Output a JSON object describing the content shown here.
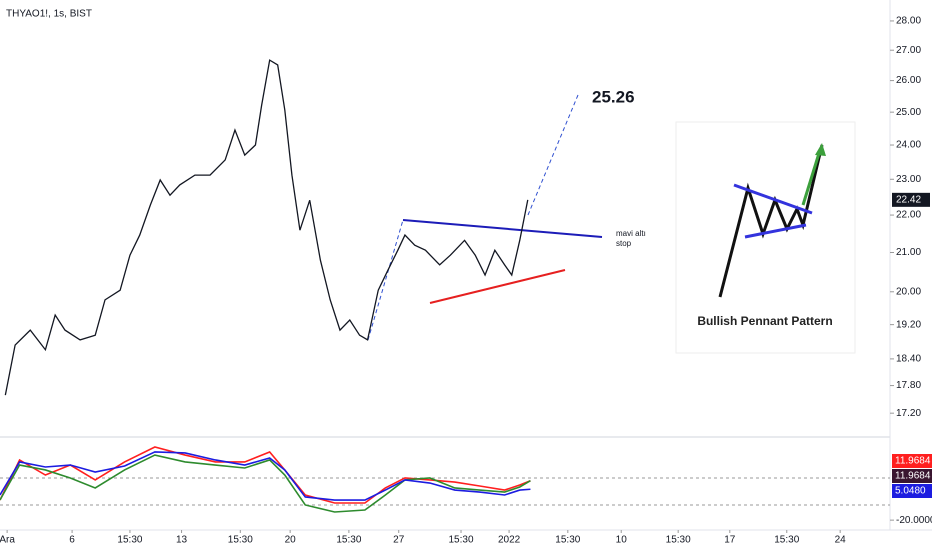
{
  "chart_data": [
    {
      "type": "line",
      "title": "THYAO1!, 1s, BIST",
      "log_scale": true,
      "color": "#131722",
      "x": [
        0.6,
        1.7,
        3.4,
        5.1,
        6.2,
        7.3,
        9.0,
        10.7,
        11.8,
        13.5,
        14.6,
        15.7,
        16.9,
        18.0,
        19.1,
        20.2,
        21.9,
        23.6,
        25.3,
        26.4,
        27.5,
        28.7,
        29.4,
        30.3,
        31.2,
        32.0,
        32.8,
        33.7,
        34.8,
        36.0,
        37.1,
        38.2,
        39.3,
        40.4,
        41.3,
        42.5,
        43.6,
        44.7,
        45.5,
        46.6,
        47.8,
        49.4,
        50.6,
        52.2,
        53.4,
        54.5,
        55.6,
        56.7,
        57.5,
        58.4,
        59.3
      ],
      "values": [
        17.59,
        18.72,
        19.07,
        18.61,
        19.43,
        19.07,
        18.84,
        18.95,
        19.8,
        20.04,
        20.93,
        21.46,
        22.28,
        22.98,
        22.55,
        22.84,
        23.12,
        23.12,
        23.56,
        24.45,
        23.7,
        24.0,
        25.22,
        26.67,
        26.51,
        25.07,
        23.12,
        21.59,
        22.41,
        20.8,
        19.8,
        19.07,
        19.31,
        18.95,
        18.84,
        20.04,
        20.55,
        21.06,
        21.46,
        21.19,
        21.06,
        20.68,
        20.93,
        21.32,
        20.93,
        20.42,
        21.06,
        20.68,
        20.42,
        21.32,
        22.42
      ],
      "xlim": [
        0,
        100
      ],
      "xticks": [
        {
          "value": 0.8,
          "label": "Ara"
        },
        {
          "value": 8.1,
          "label": "6"
        },
        {
          "value": 14.6,
          "label": "15:30"
        },
        {
          "value": 20.4,
          "label": "13"
        },
        {
          "value": 27,
          "label": "15:30"
        },
        {
          "value": 32.6,
          "label": "20"
        },
        {
          "value": 39.2,
          "label": "15:30"
        },
        {
          "value": 44.8,
          "label": "27"
        },
        {
          "value": 51.8,
          "label": "15:30"
        },
        {
          "value": 57.2,
          "label": "2022"
        },
        {
          "value": 63.8,
          "label": "15:30"
        },
        {
          "value": 69.8,
          "label": "10"
        },
        {
          "value": 76.2,
          "label": "15:30"
        },
        {
          "value": 82,
          "label": "17"
        },
        {
          "value": 88.4,
          "label": "15:30"
        },
        {
          "value": 94.4,
          "label": "24"
        }
      ],
      "ylim": [
        16.74,
        28.56
      ],
      "yticks": [
        {
          "value": 28,
          "label": "28.00"
        },
        {
          "value": 27,
          "label": "27.00"
        },
        {
          "value": 26,
          "label": "26.00"
        },
        {
          "value": 25,
          "label": "25.00"
        },
        {
          "value": 24,
          "label": "24.00"
        },
        {
          "value": 23,
          "label": "23.00"
        },
        {
          "value": 22,
          "label": "22.00"
        },
        {
          "value": 21,
          "label": "21.00"
        },
        {
          "value": 20,
          "label": "20.00"
        },
        {
          "value": 19.2,
          "label": "19.20"
        },
        {
          "value": 18.4,
          "label": "18.40"
        },
        {
          "value": 17.8,
          "label": "17.80"
        },
        {
          "value": 17.2,
          "label": "17.20"
        }
      ],
      "annotations": [
        "25.26",
        "mavi altı",
        "stop",
        "Bullish Pennant Pattern"
      ]
    },
    {
      "type": "multiline",
      "x": [
        0,
        2.2,
        5.1,
        7.9,
        10.7,
        14.0,
        17.4,
        20.8,
        24.2,
        27.5,
        30.3,
        32.0,
        34.3,
        37.6,
        41.0,
        43.3,
        45.5,
        48.3,
        51.1,
        53.9,
        56.7,
        58.4,
        59.6
      ],
      "xlim": [
        0,
        100
      ],
      "ylim": [
        -28,
        45
      ],
      "yticks": [
        {
          "value": -20,
          "label": "-20.0000"
        }
      ],
      "series": [
        {
          "color": "#ff1f1f",
          "values": [
            -3.7,
            28.8,
            16.6,
            24.7,
            12.6,
            27.2,
            39.3,
            32.8,
            27.2,
            27.2,
            35.3,
            20.7,
            0.4,
            -6.1,
            -6.1,
            6.1,
            14.2,
            12.6,
            10.9,
            7.7,
            4.4,
            8.5,
            11.9684
          ]
        },
        {
          "color": "#2e8b2e",
          "values": [
            -3.7,
            24.7,
            20.7,
            14.2,
            6.1,
            20.7,
            32.8,
            27.2,
            24.7,
            22.3,
            28.8,
            16.6,
            -7.7,
            -13.4,
            -11.8,
            0.4,
            12.6,
            14.2,
            6.1,
            4.4,
            2.8,
            6.9,
            11.9684
          ]
        },
        {
          "color": "#1c1ce0",
          "values": [
            0.4,
            27.2,
            23.1,
            24.7,
            19.0,
            23.9,
            35.3,
            34.5,
            28.8,
            24.7,
            30.4,
            20.7,
            -1.2,
            -3.7,
            -3.7,
            4.4,
            12.6,
            10.1,
            4.4,
            2.8,
            0.4,
            4.4,
            5.048
          ],
          "value_labels": [
            null,
            null,
            null,
            null,
            null,
            null,
            null,
            null,
            null,
            null,
            null,
            null,
            null,
            null,
            null,
            null,
            null,
            null,
            null,
            null,
            null,
            null,
            "5.0480"
          ]
        }
      ]
    }
  ]
}
